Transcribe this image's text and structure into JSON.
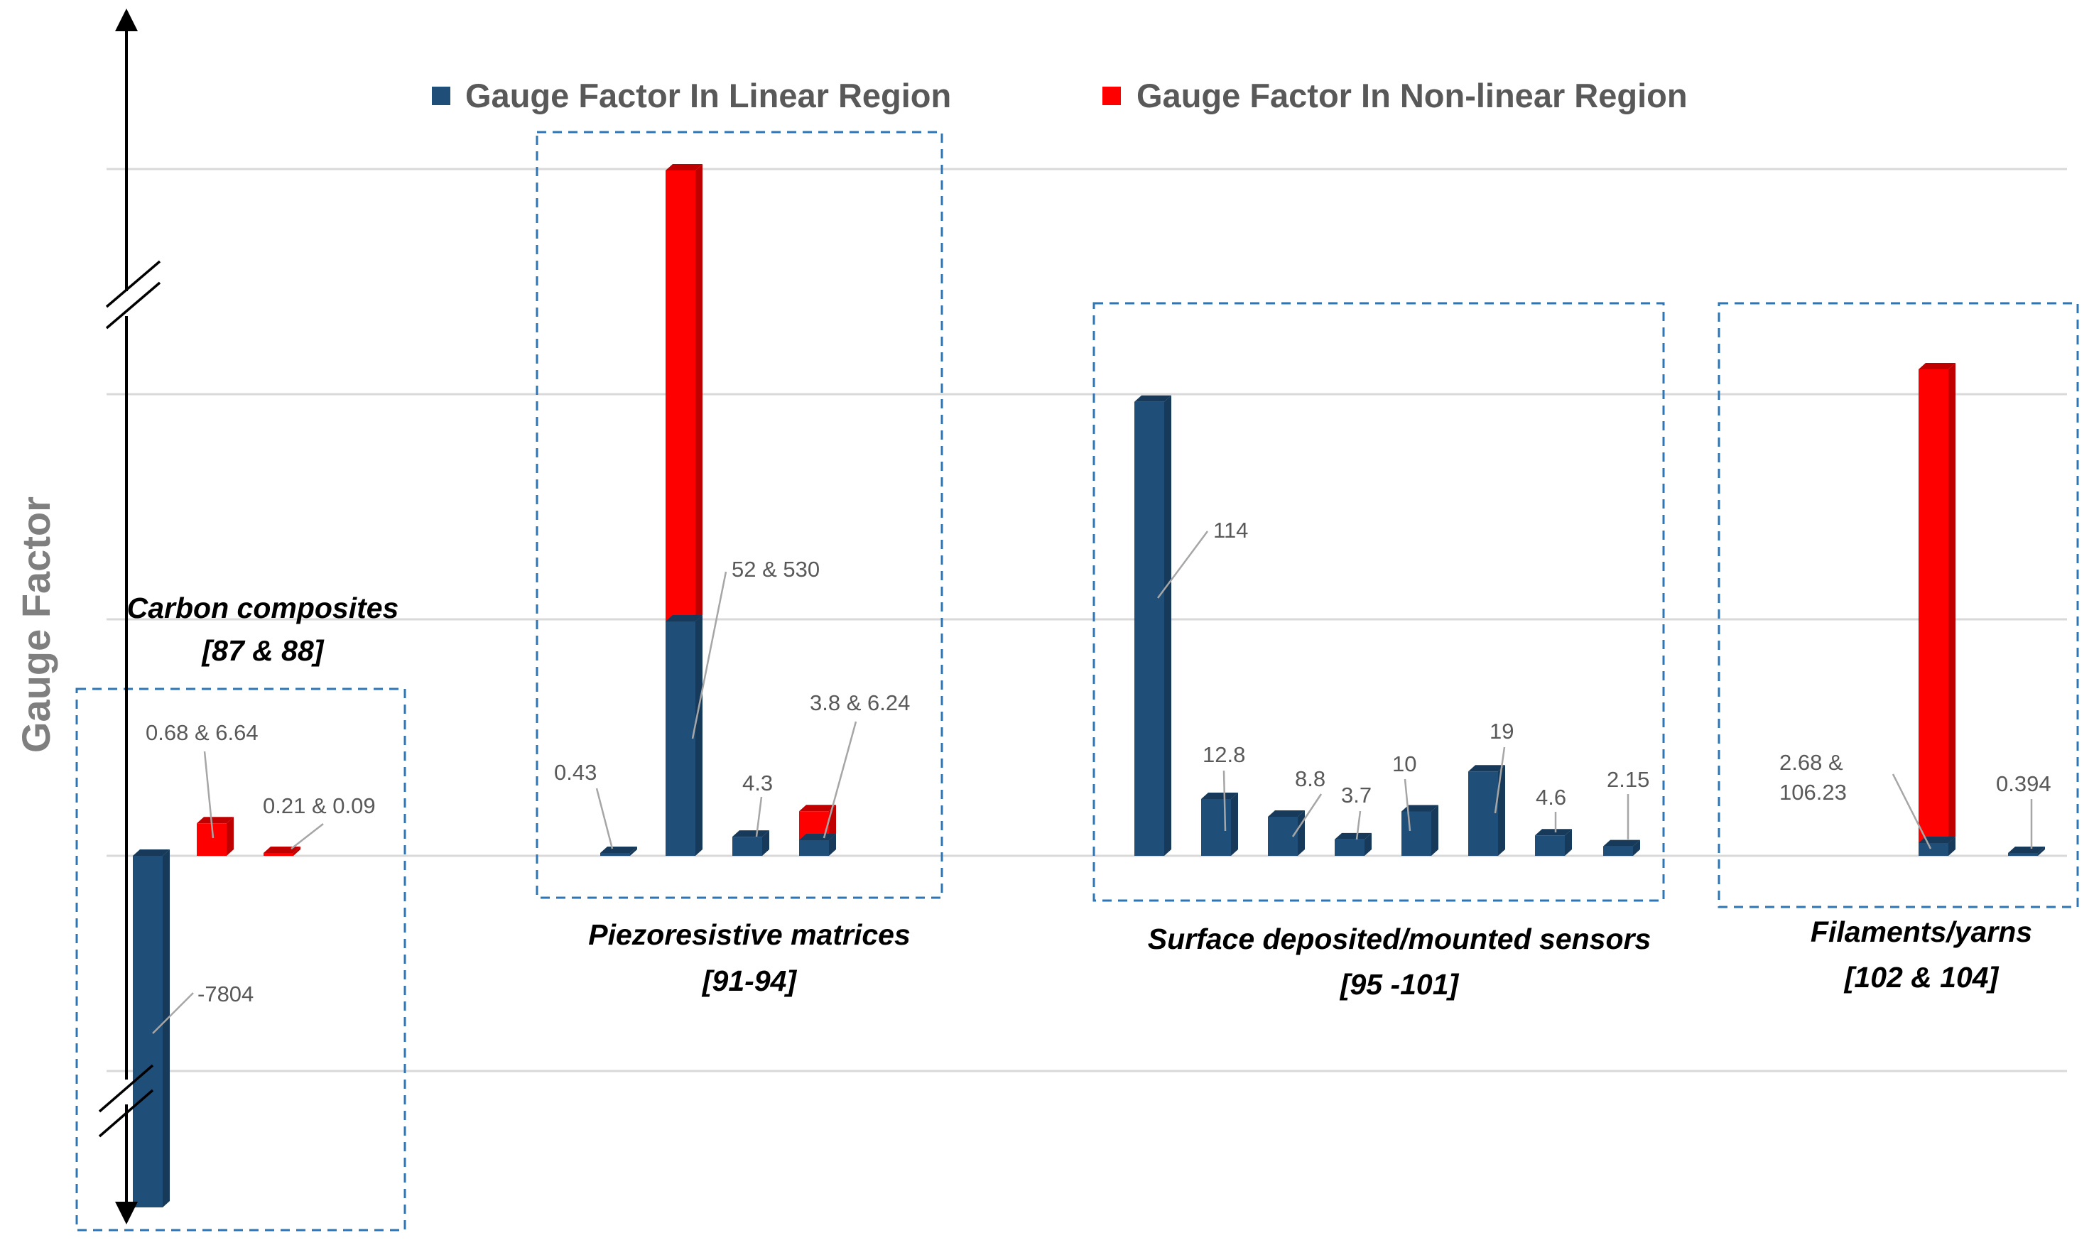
{
  "chart_data": {
    "type": "bar",
    "stacked": true,
    "ylabel": "Gauge Factor",
    "axis_break": true,
    "grid": true,
    "legend_placement": "top",
    "series": [
      {
        "name": "Gauge Factor In Linear Region",
        "color": "#1f4e79"
      },
      {
        "name": "Gauge Factor In Non-linear Region",
        "color": "#ff0000"
      }
    ],
    "groups": [
      {
        "label_line1": "Carbon composites",
        "label_line2": "[87 & 88]",
        "bars": [
          {
            "label": "-7804",
            "linear": -7804,
            "nonlinear": 0
          },
          {
            "label": "0.68 & 6.64",
            "linear": 0.68,
            "nonlinear": 6.64
          },
          {
            "label": "0.21 & 0.09",
            "linear": 0.21,
            "nonlinear": 0.09
          }
        ]
      },
      {
        "label_line1": "Piezoresistive matrices",
        "label_line2": "[91-94]",
        "bars": [
          {
            "label": "0.43",
            "linear": 0.43,
            "nonlinear": 0
          },
          {
            "label": "52 & 530",
            "linear": 52,
            "nonlinear": 530
          },
          {
            "label": "4.3",
            "linear": 4.3,
            "nonlinear": 0
          },
          {
            "label": "3.8 & 6.24",
            "linear": 3.8,
            "nonlinear": 6.24
          }
        ]
      },
      {
        "label_line1": "Surface deposited/mounted sensors",
        "label_line2": "[95 -101]",
        "bars": [
          {
            "label": "114",
            "linear": 114,
            "nonlinear": 0
          },
          {
            "label": "12.8",
            "linear": 12.8,
            "nonlinear": 0
          },
          {
            "label": "8.8",
            "linear": 8.8,
            "nonlinear": 0
          },
          {
            "label": "3.7",
            "linear": 3.7,
            "nonlinear": 0
          },
          {
            "label": "10",
            "linear": 10,
            "nonlinear": 0
          },
          {
            "label": "19",
            "linear": 19,
            "nonlinear": 0
          },
          {
            "label": "4.6",
            "linear": 4.6,
            "nonlinear": 0
          },
          {
            "label": "2.15",
            "linear": 2.15,
            "nonlinear": 0
          }
        ]
      },
      {
        "label_line1": "Filaments/yarns",
        "label_line2": "[102 & 104]",
        "bars": [
          {
            "label": "2.68 &\n106.23",
            "linear": 2.68,
            "nonlinear": 106.23
          },
          {
            "label": "0.394",
            "linear": 0.394,
            "nonlinear": 0
          }
        ]
      }
    ]
  }
}
